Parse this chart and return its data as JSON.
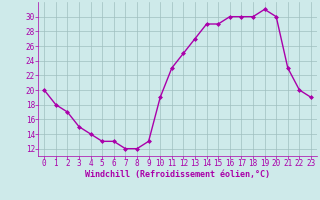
{
  "x": [
    0,
    1,
    2,
    3,
    4,
    5,
    6,
    7,
    8,
    9,
    10,
    11,
    12,
    13,
    14,
    15,
    16,
    17,
    18,
    19,
    20,
    21,
    22,
    23
  ],
  "y": [
    20,
    18,
    17,
    15,
    14,
    13,
    13,
    12,
    12,
    13,
    19,
    23,
    25,
    27,
    29,
    29,
    30,
    30,
    30,
    31,
    30,
    23,
    20,
    19
  ],
  "line_color": "#aa00aa",
  "marker": "D",
  "marker_size": 2.0,
  "background_color": "#ceeaea",
  "grid_color": "#a0bfbf",
  "xlabel": "Windchill (Refroidissement éolien,°C)",
  "xlabel_color": "#aa00aa",
  "tick_color": "#aa00aa",
  "ylim": [
    11,
    32
  ],
  "xlim": [
    -0.5,
    23.5
  ],
  "yticks": [
    12,
    14,
    16,
    18,
    20,
    22,
    24,
    26,
    28,
    30
  ],
  "xticks": [
    0,
    1,
    2,
    3,
    4,
    5,
    6,
    7,
    8,
    9,
    10,
    11,
    12,
    13,
    14,
    15,
    16,
    17,
    18,
    19,
    20,
    21,
    22,
    23
  ],
  "line_width": 1.0,
  "tick_fontsize": 5.5,
  "xlabel_fontsize": 6.0
}
